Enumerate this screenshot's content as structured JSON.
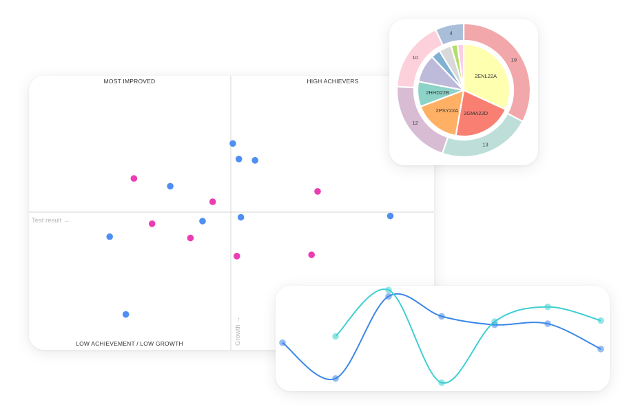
{
  "colors": {
    "blue": "#4f8ef2",
    "pink": "#ec3cb4",
    "teal": "#3fcfd2",
    "line_blue": "#3a87e8"
  },
  "chart_data": [
    {
      "type": "scatter",
      "quadrant_labels": {
        "top_left": "MOST IMPROVED",
        "top_right": "HIGH ACHIEVERS",
        "bottom_left": "LOW ACHIEVEMENT / LOW GROWTH"
      },
      "xlabel": "Test result →",
      "ylabel": "Growth →",
      "xlim": [
        -1,
        1
      ],
      "ylim": [
        -1,
        1
      ],
      "series": [
        {
          "color": "#4f8ef2",
          "points": [
            {
              "x": 0.01,
              "y": 0.53
            },
            {
              "x": 0.04,
              "y": 0.41
            },
            {
              "x": 0.12,
              "y": 0.4
            },
            {
              "x": -0.3,
              "y": 0.2
            },
            {
              "x": -0.14,
              "y": -0.07
            },
            {
              "x": 0.05,
              "y": -0.04
            },
            {
              "x": -0.6,
              "y": -0.19
            },
            {
              "x": 0.79,
              "y": -0.03
            },
            {
              "x": -0.52,
              "y": -0.79
            }
          ]
        },
        {
          "color": "#ec3cb4",
          "points": [
            {
              "x": -0.48,
              "y": 0.26
            },
            {
              "x": -0.09,
              "y": 0.08
            },
            {
              "x": 0.43,
              "y": 0.16
            },
            {
              "x": -0.39,
              "y": -0.09
            },
            {
              "x": -0.2,
              "y": -0.2
            },
            {
              "x": 0.03,
              "y": -0.34
            },
            {
              "x": 0.4,
              "y": -0.33
            }
          ]
        }
      ]
    },
    {
      "type": "pie",
      "inner": [
        {
          "label": "2ENL22A",
          "value": 29,
          "color": "#ffffb0"
        },
        {
          "label": "2GMA22D",
          "value": 19,
          "color": "#f97f73"
        },
        {
          "label": "2PSY22A",
          "value": 15,
          "color": "#ffb065"
        },
        {
          "label": "2HHD22B",
          "value": 8,
          "color": "#8dd3c7"
        },
        {
          "label": "",
          "value": 9,
          "color": "#bebada"
        },
        {
          "label": "",
          "value": 3,
          "color": "#80b1d3"
        },
        {
          "label": "",
          "value": 4,
          "color": "#d9d9d9"
        },
        {
          "label": "",
          "value": 2,
          "color": "#b3de69"
        },
        {
          "label": "",
          "value": 2,
          "color": "#fccde5"
        }
      ],
      "outer": [
        {
          "label": "19",
          "value": 19,
          "color": "#f2a7aa"
        },
        {
          "label": "13",
          "value": 13,
          "color": "#bedfd9"
        },
        {
          "label": "12",
          "value": 12,
          "color": "#d7bcd4"
        },
        {
          "label": "10",
          "value": 10,
          "color": "#fcd1dc"
        },
        {
          "label": "4",
          "value": 4,
          "color": "#a9bed9"
        }
      ]
    },
    {
      "type": "line",
      "x": [
        1,
        2,
        3,
        4,
        5,
        6,
        7
      ],
      "ylim": [
        0,
        100
      ],
      "series": [
        {
          "color": "#3a87e8",
          "x": [
            1,
            2,
            3,
            4,
            5,
            6,
            7
          ],
          "values": [
            46,
            12,
            90,
            71,
            63,
            64,
            40
          ]
        },
        {
          "color": "#3fcfd2",
          "x": [
            2,
            3,
            4,
            5,
            6,
            7
          ],
          "values": [
            52,
            96,
            8,
            66,
            80,
            67
          ]
        }
      ]
    }
  ]
}
